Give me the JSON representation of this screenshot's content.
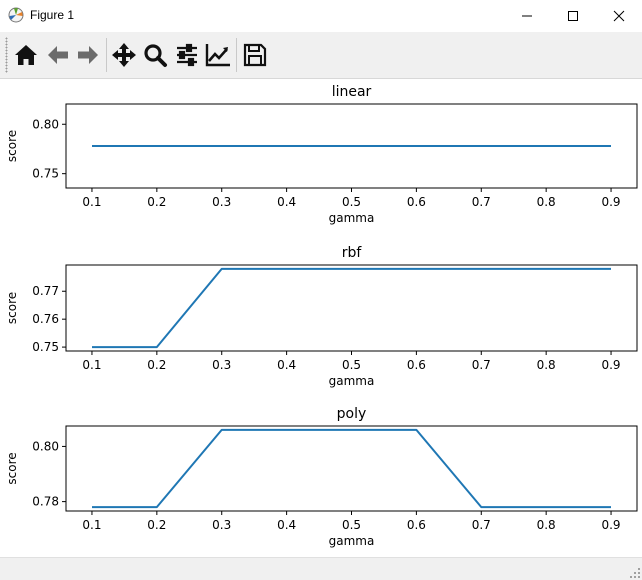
{
  "window": {
    "title": "Figure 1",
    "icon": "matplotlib-icon",
    "controls": [
      "minimize-icon",
      "maximize-icon",
      "close-icon"
    ]
  },
  "toolbar": {
    "items": [
      {
        "name": "home-button",
        "icon": "home-icon"
      },
      {
        "name": "back-button",
        "icon": "arrow-left-icon"
      },
      {
        "name": "forward-button",
        "icon": "arrow-right-icon"
      },
      {
        "name": "pan-button",
        "icon": "move-icon"
      },
      {
        "name": "zoom-button",
        "icon": "magnifier-icon"
      },
      {
        "name": "configure-subplots-button",
        "icon": "sliders-icon"
      },
      {
        "name": "edit-axes-button",
        "icon": "line-chart-icon"
      },
      {
        "name": "save-button",
        "icon": "floppy-disk-icon"
      }
    ]
  },
  "chart_data": [
    {
      "type": "line",
      "title": "linear",
      "xlabel": "gamma",
      "ylabel": "score",
      "x": [
        0.1,
        0.2,
        0.3,
        0.4,
        0.5,
        0.6,
        0.7,
        0.8,
        0.9
      ],
      "series": [
        {
          "values": [
            0.778,
            0.778,
            0.778,
            0.778,
            0.778,
            0.778,
            0.778,
            0.778,
            0.778
          ]
        }
      ],
      "xticks": [
        "0.1",
        "0.2",
        "0.3",
        "0.4",
        "0.5",
        "0.6",
        "0.7",
        "0.8",
        "0.9"
      ],
      "yticks": [
        {
          "value": 0.75,
          "label": "0.75"
        },
        {
          "value": 0.8,
          "label": "0.80"
        }
      ],
      "xlim": [
        0.06,
        0.94
      ],
      "ylim": [
        0.7355,
        0.8205
      ],
      "grid": false,
      "color": "#1f77b4"
    },
    {
      "type": "line",
      "title": "rbf",
      "xlabel": "gamma",
      "ylabel": "score",
      "x": [
        0.1,
        0.2,
        0.3,
        0.4,
        0.5,
        0.6,
        0.7,
        0.8,
        0.9
      ],
      "series": [
        {
          "values": [
            0.75,
            0.75,
            0.778,
            0.778,
            0.778,
            0.778,
            0.778,
            0.778,
            0.778
          ]
        }
      ],
      "xticks": [
        "0.1",
        "0.2",
        "0.3",
        "0.4",
        "0.5",
        "0.6",
        "0.7",
        "0.8",
        "0.9"
      ],
      "yticks": [
        {
          "value": 0.75,
          "label": "0.75"
        },
        {
          "value": 0.76,
          "label": "0.76"
        },
        {
          "value": 0.77,
          "label": "0.77"
        }
      ],
      "xlim": [
        0.06,
        0.94
      ],
      "ylim": [
        0.7486,
        0.7794
      ],
      "grid": false,
      "color": "#1f77b4"
    },
    {
      "type": "line",
      "title": "poly",
      "xlabel": "gamma",
      "ylabel": "score",
      "x": [
        0.1,
        0.2,
        0.3,
        0.4,
        0.5,
        0.6,
        0.7,
        0.8,
        0.9
      ],
      "series": [
        {
          "values": [
            0.778,
            0.778,
            0.806,
            0.806,
            0.806,
            0.806,
            0.778,
            0.778,
            0.778
          ]
        }
      ],
      "xticks": [
        "0.1",
        "0.2",
        "0.3",
        "0.4",
        "0.5",
        "0.6",
        "0.7",
        "0.8",
        "0.9"
      ],
      "yticks": [
        {
          "value": 0.78,
          "label": "0.78"
        },
        {
          "value": 0.8,
          "label": "0.80"
        }
      ],
      "xlim": [
        0.06,
        0.94
      ],
      "ylim": [
        0.7766,
        0.8074
      ],
      "grid": false,
      "color": "#1f77b4"
    }
  ]
}
